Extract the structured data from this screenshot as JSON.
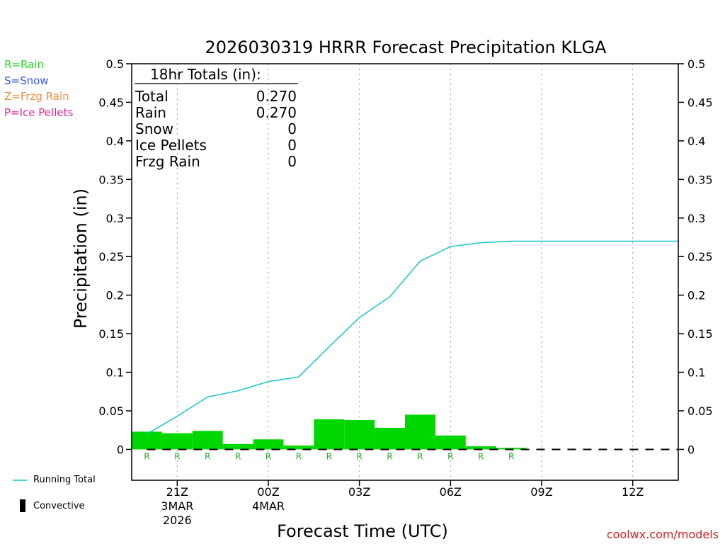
{
  "chart_data": {
    "type": "bar",
    "title": "2026030319 HRRR Forecast Precipitation KLGA",
    "xlabel": "Forecast Time (UTC)",
    "ylabel": "Precipitation (in)",
    "ylim": [
      -0.04,
      0.5
    ],
    "y_ticks": [
      "0",
      "0.05",
      "0.1",
      "0.15",
      "0.2",
      "0.25",
      "0.3",
      "0.35",
      "0.4",
      "0.45",
      "0.5"
    ],
    "x_hours": [
      20,
      21,
      22,
      23,
      24,
      25,
      26,
      27,
      28,
      29,
      30,
      31,
      32,
      33,
      34,
      35,
      36,
      37
    ],
    "x_ticks": [
      {
        "hour": 21,
        "label": "21Z",
        "date1": "3MAR",
        "date2": "2026"
      },
      {
        "hour": 24,
        "label": "00Z",
        "date1": "4MAR",
        "date2": ""
      },
      {
        "hour": 27,
        "label": "03Z",
        "date1": "",
        "date2": ""
      },
      {
        "hour": 30,
        "label": "06Z",
        "date1": "",
        "date2": ""
      },
      {
        "hour": 33,
        "label": "09Z",
        "date1": "",
        "date2": ""
      },
      {
        "hour": 36,
        "label": "12Z",
        "date1": "",
        "date2": ""
      }
    ],
    "series": [
      {
        "name": "Hourly Precipitation",
        "color": "#00d600",
        "values": [
          0.023,
          0.021,
          0.024,
          0.007,
          0.013,
          0.005,
          0.039,
          0.038,
          0.028,
          0.045,
          0.018,
          0.004,
          0.002,
          0,
          0,
          0,
          0,
          0
        ]
      },
      {
        "name": "Running Total",
        "color": "#11c6c6",
        "values": [
          0.02,
          0.043,
          0.068,
          0.076,
          0.088,
          0.094,
          0.133,
          0.171,
          0.198,
          0.244,
          0.263,
          0.268,
          0.27,
          0.27,
          0.27,
          0.27,
          0.27,
          0.27
        ]
      }
    ],
    "ptype_markers": [
      "R",
      "R",
      "R",
      "R",
      "R",
      "R",
      "R",
      "R",
      "R",
      "R",
      "R",
      "R",
      "R",
      "",
      "",
      "",
      "",
      ""
    ]
  },
  "totals": {
    "header": "18hr Totals (in):",
    "rows": [
      {
        "label": "Total",
        "value": "0.270"
      },
      {
        "label": "Rain",
        "value": "0.270"
      },
      {
        "label": "Snow",
        "value": "0"
      },
      {
        "label": "Ice Pellets",
        "value": "0"
      },
      {
        "label": "Frzg Rain",
        "value": "0"
      }
    ]
  },
  "ptype_legend": [
    {
      "text": "R=Rain",
      "color": "#22dd22"
    },
    {
      "text": "S=Snow",
      "color": "#3355ee"
    },
    {
      "text": "Z=Frzg Rain",
      "color": "#f08c3c"
    },
    {
      "text": "P=Ice Pellets",
      "color": "#e52290"
    }
  ],
  "bottom_legend": {
    "running_total": "Running Total",
    "convective": "Convective"
  },
  "colors": {
    "bar": "#00d600",
    "running_total": "#11c6c6",
    "marker": "#22aa22",
    "grid": "#999999"
  },
  "credit": "coolwx.com/models"
}
